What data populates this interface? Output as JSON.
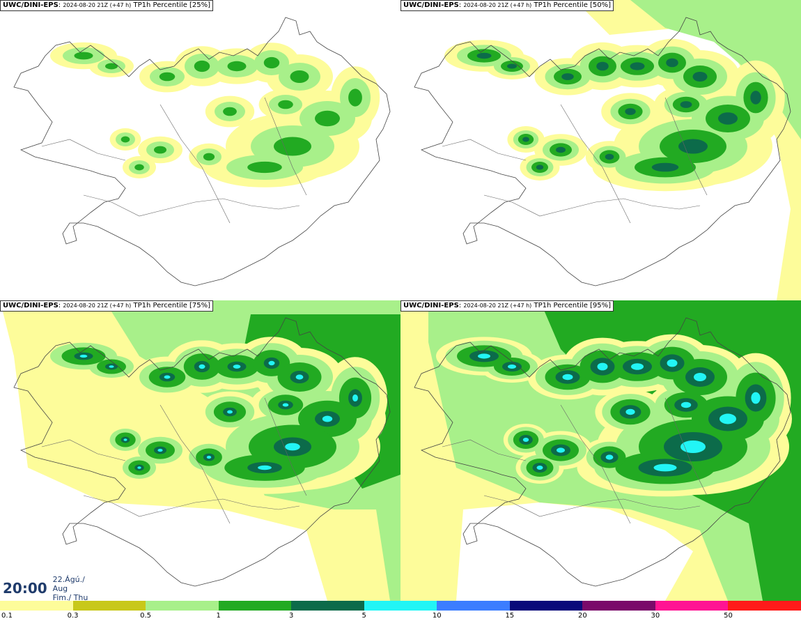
{
  "panels": [
    {
      "id": "p25",
      "source": "UWC/DINI-EPS",
      "run": "2024-08-20 21Z (+47 h)",
      "title": "TP1h Percentile [25%]"
    },
    {
      "id": "p50",
      "source": "UWC/DINI-EPS",
      "run": "2024-08-20 21Z (+47 h)",
      "title": "TP1h Percentile [50%]"
    },
    {
      "id": "p75",
      "source": "UWC/DINI-EPS",
      "run": "2024-08-20 21Z (+47 h)",
      "title": "TP1h Percentile [75%]"
    },
    {
      "id": "p95",
      "source": "UWC/DINI-EPS",
      "run": "2024-08-20 21Z (+47 h)",
      "title": "TP1h Percentile [95%]"
    }
  ],
  "time": {
    "hm": "20:00",
    "date_line1": "22.Ágú./ Aug",
    "date_line2": "Fim./ Thu"
  },
  "legend": {
    "colors": [
      "#fdfc9a",
      "#c8c81a",
      "#a8f08a",
      "#22aa22",
      "#0c6b4a",
      "#22f5f5",
      "#3c7dff",
      "#0a0a7a",
      "#7a0a6a",
      "#ff1493",
      "#ff1a1a"
    ],
    "labels": [
      "0.1",
      "0.3",
      "0.5",
      "1",
      "3",
      "5",
      "10",
      "15",
      "20",
      "30",
      "50"
    ]
  }
}
